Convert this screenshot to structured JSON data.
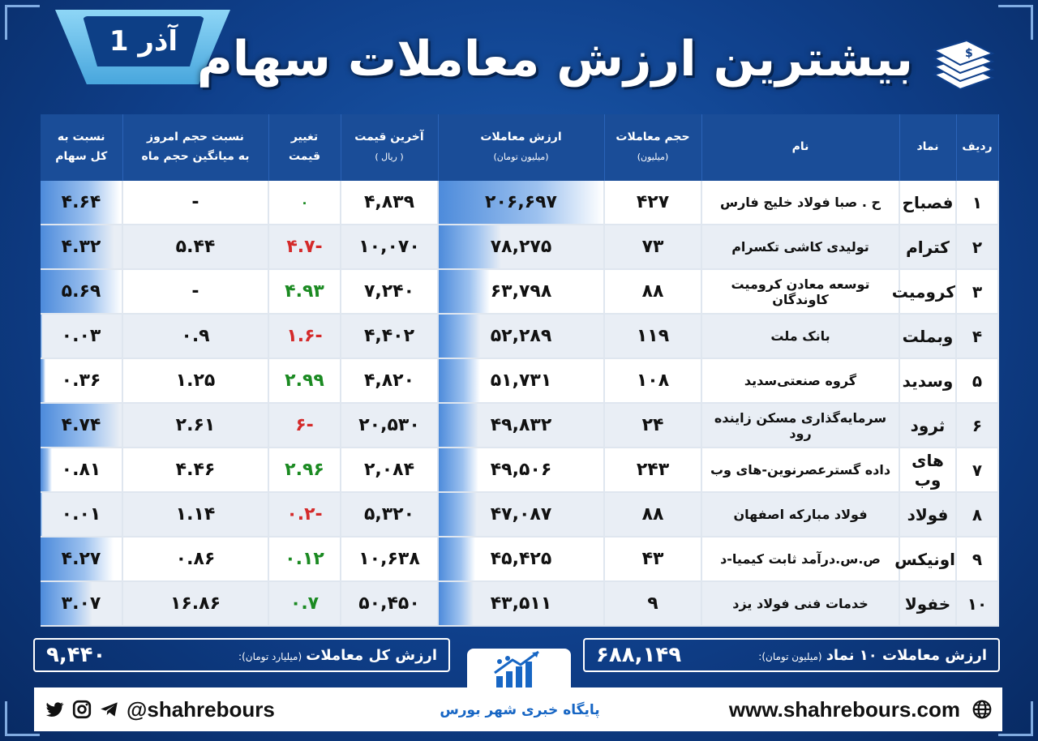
{
  "header": {
    "date": "1 آذر",
    "title": "بیشترین ارزش معاملات سهام"
  },
  "columns": {
    "row": "ردیف",
    "symbol": "نماد",
    "name": "نام",
    "volume": "حجم معاملات",
    "volume_unit": "(میلیون)",
    "value": "ارزش معاملات",
    "value_unit": "(میلیون تومان)",
    "last_price": "آخرین قیمت",
    "last_price_unit": "( ریال )",
    "change": "تغییر",
    "change_line2": "قیمت",
    "vol_ratio": "نسبت حجم امروز",
    "vol_ratio_line2": "به میانگین حجم ماه",
    "share_ratio": "نسبت به",
    "share_ratio_line2": "کل سهام"
  },
  "rows": [
    {
      "row": "۱",
      "symbol": "فصباح",
      "name": "ح . صبا فولاد خلیج فارس",
      "volume": "۴۲۷",
      "value": "۲۰۶,۶۹۷",
      "value_fraction": 1.0,
      "last_price": "۴,۸۳۹",
      "change": "۰",
      "change_dir": "zero",
      "vol_ratio": "-",
      "share_ratio": "۴.۶۴",
      "share_fraction": 0.98
    },
    {
      "row": "۲",
      "symbol": "کترام",
      "name": "تولیدی کاشی تکسرام",
      "volume": "۷۳",
      "value": "۷۸,۲۷۵",
      "value_fraction": 0.38,
      "last_price": "۱۰,۰۷۰",
      "change": "-۴.۷",
      "change_dir": "neg",
      "vol_ratio": "۵.۴۴",
      "share_ratio": "۴.۳۲",
      "share_fraction": 0.91
    },
    {
      "row": "۳",
      "symbol": "کرومیت",
      "name": "توسعه معادن کرومیت کاوندگان",
      "volume": "۸۸",
      "value": "۶۳,۷۹۸",
      "value_fraction": 0.31,
      "last_price": "۷,۲۴۰",
      "change": "۴.۹۳",
      "change_dir": "pos",
      "vol_ratio": "-",
      "share_ratio": "۵.۶۹",
      "share_fraction": 1.0
    },
    {
      "row": "۴",
      "symbol": "وبملت",
      "name": "بانک ملت",
      "volume": "۱۱۹",
      "value": "۵۲,۲۸۹",
      "value_fraction": 0.25,
      "last_price": "۴,۴۰۲",
      "change": "-۱.۶",
      "change_dir": "neg",
      "vol_ratio": "۰.۹",
      "share_ratio": "۰.۰۳",
      "share_fraction": 0.0
    },
    {
      "row": "۵",
      "symbol": "وسدید",
      "name": "گروه صنعتی‌سدید",
      "volume": "۱۰۸",
      "value": "۵۱,۷۳۱",
      "value_fraction": 0.25,
      "last_price": "۴,۸۲۰",
      "change": "۲.۹۹",
      "change_dir": "pos",
      "vol_ratio": "۱.۲۵",
      "share_ratio": "۰.۳۶",
      "share_fraction": 0.06
    },
    {
      "row": "۶",
      "symbol": "ثرود",
      "name": "سرمایه‌گذاری مسکن زاینده رود",
      "volume": "۲۴",
      "value": "۴۹,۸۳۲",
      "value_fraction": 0.24,
      "last_price": "۲۰,۵۳۰",
      "change": "-۶",
      "change_dir": "neg",
      "vol_ratio": "۲.۶۱",
      "share_ratio": "۴.۷۴",
      "share_fraction": 0.98
    },
    {
      "row": "۷",
      "symbol": "های وب",
      "name": "داده گسترعصرنوین-های وب",
      "volume": "۲۴۳",
      "value": "۴۹,۵۰۶",
      "value_fraction": 0.24,
      "last_price": "۲,۰۸۴",
      "change": "۲.۹۶",
      "change_dir": "pos",
      "vol_ratio": "۴.۴۶",
      "share_ratio": "۰.۸۱",
      "share_fraction": 0.14
    },
    {
      "row": "۸",
      "symbol": "فولاد",
      "name": "فولاد مبارکه اصفهان",
      "volume": "۸۸",
      "value": "۴۷,۰۸۷",
      "value_fraction": 0.23,
      "last_price": "۵,۳۲۰",
      "change": "-۰.۲",
      "change_dir": "neg",
      "vol_ratio": "۱.۱۴",
      "share_ratio": "۰.۰۱",
      "share_fraction": 0.0
    },
    {
      "row": "۹",
      "symbol": "اونیکس",
      "name": "ص.س.درآمد ثابت کیمیا-د",
      "volume": "۴۳",
      "value": "۴۵,۴۲۵",
      "value_fraction": 0.22,
      "last_price": "۱۰,۶۳۸",
      "change": "۰.۱۲",
      "change_dir": "pos",
      "vol_ratio": "۰.۸۶",
      "share_ratio": "۴.۲۷",
      "share_fraction": 0.9
    },
    {
      "row": "۱۰",
      "symbol": "خفولا",
      "name": "خدمات فنی فولاد یزد",
      "volume": "۹",
      "value": "۴۳,۵۱۱",
      "value_fraction": 0.21,
      "last_price": "۵۰,۴۵۰",
      "change": "۰.۷",
      "change_dir": "pos",
      "vol_ratio": "۱۶.۸۶",
      "share_ratio": "۳.۰۷",
      "share_fraction": 0.64
    }
  ],
  "summary": {
    "total_label": "ارزش کل معاملات",
    "total_unit": "(میلیارد تومان):",
    "total_value": "۹,۴۴۰",
    "top10_label": "ارزش معاملات ۱۰ نماد",
    "top10_unit": "(میلیون تومان):",
    "top10_value": "۶۸۸,۱۴۹"
  },
  "footer": {
    "handle": "@shahrebours",
    "website": "www.shahrebours.com",
    "brand": "پایگاه خبری شهر بورس"
  },
  "colors": {
    "positive": "#1b8a22",
    "negative": "#d42a2a",
    "header_bg": "#1a4d98",
    "bar": "#4d8bdb"
  }
}
